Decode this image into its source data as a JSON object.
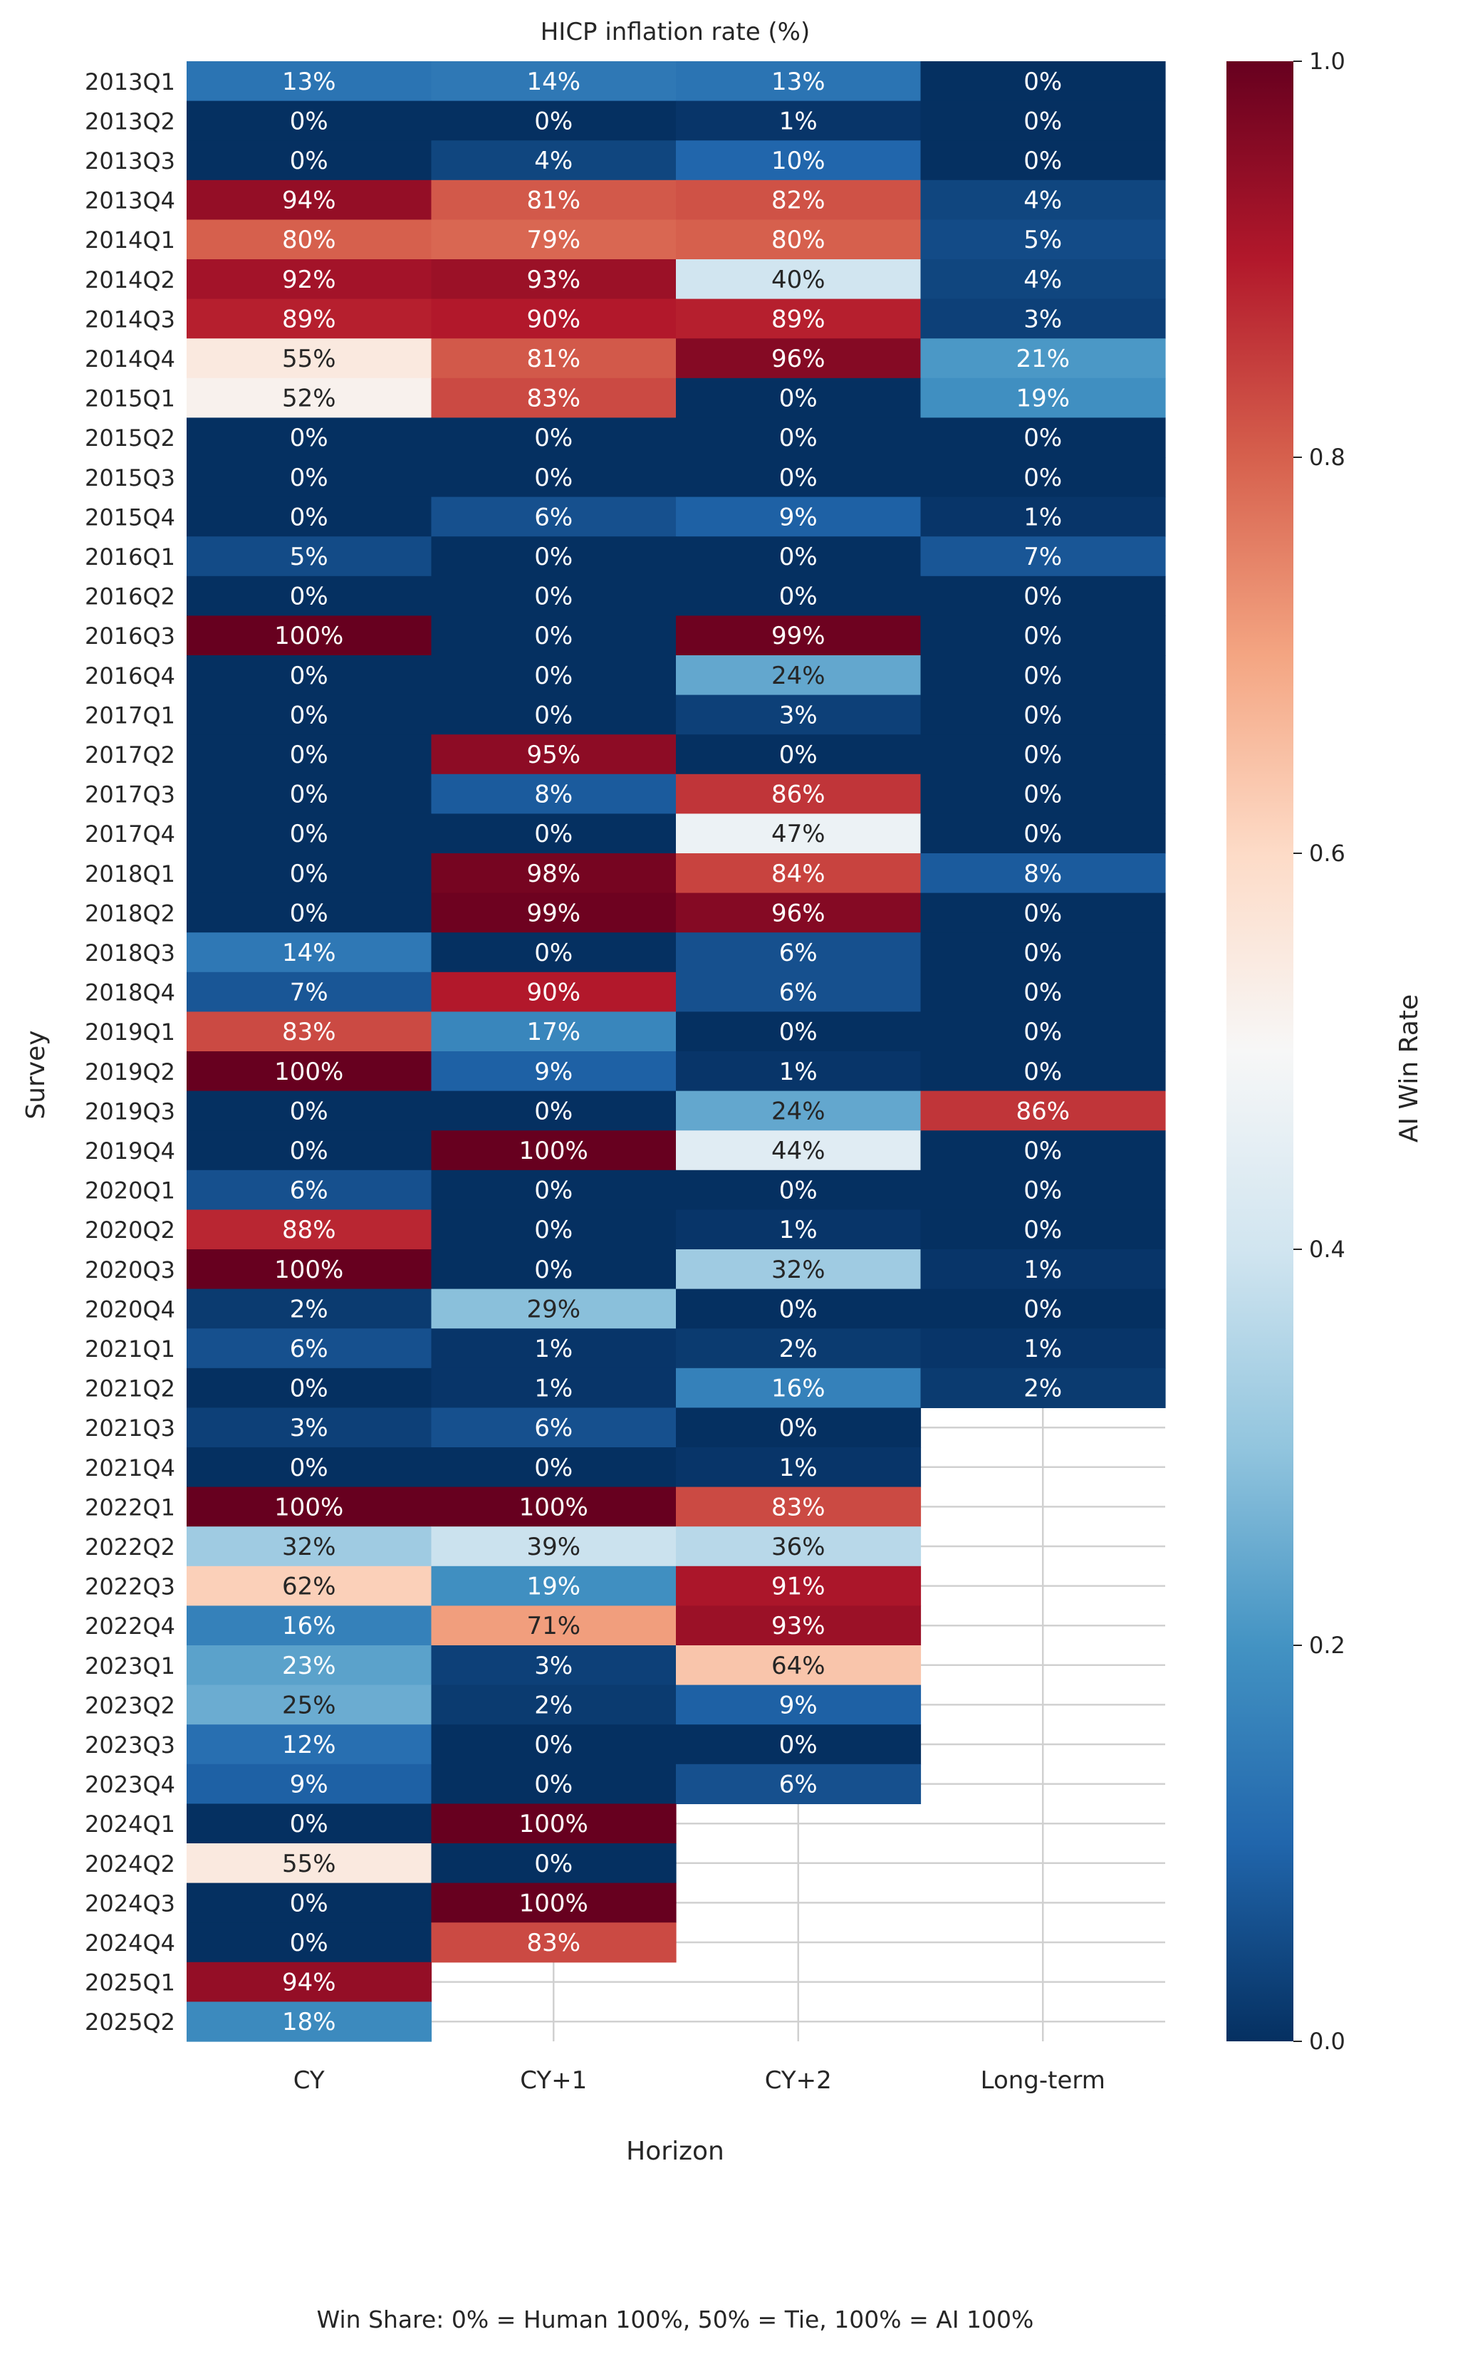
{
  "chart_data": {
    "type": "heatmap",
    "title": "HICP inflation rate (%)",
    "xlabel": "Horizon",
    "ylabel": "Survey",
    "columns": [
      "CY",
      "CY+1",
      "CY+2",
      "Long-term"
    ],
    "rows": [
      "2013Q1",
      "2013Q2",
      "2013Q3",
      "2013Q4",
      "2014Q1",
      "2014Q2",
      "2014Q3",
      "2014Q4",
      "2015Q1",
      "2015Q2",
      "2015Q3",
      "2015Q4",
      "2016Q1",
      "2016Q2",
      "2016Q3",
      "2016Q4",
      "2017Q1",
      "2017Q2",
      "2017Q3",
      "2017Q4",
      "2018Q1",
      "2018Q2",
      "2018Q3",
      "2018Q4",
      "2019Q1",
      "2019Q2",
      "2019Q3",
      "2019Q4",
      "2020Q1",
      "2020Q2",
      "2020Q3",
      "2020Q4",
      "2021Q1",
      "2021Q2",
      "2021Q3",
      "2021Q4",
      "2022Q1",
      "2022Q2",
      "2022Q3",
      "2022Q4",
      "2023Q1",
      "2023Q2",
      "2023Q3",
      "2023Q4",
      "2024Q1",
      "2024Q2",
      "2024Q3",
      "2024Q4",
      "2025Q1",
      "2025Q2"
    ],
    "values": [
      [
        13,
        14,
        13,
        0
      ],
      [
        0,
        0,
        1,
        0
      ],
      [
        0,
        4,
        10,
        0
      ],
      [
        94,
        81,
        82,
        4
      ],
      [
        80,
        79,
        80,
        5
      ],
      [
        92,
        93,
        40,
        4
      ],
      [
        89,
        90,
        89,
        3
      ],
      [
        55,
        81,
        96,
        21
      ],
      [
        52,
        83,
        0,
        19
      ],
      [
        0,
        0,
        0,
        0
      ],
      [
        0,
        0,
        0,
        0
      ],
      [
        0,
        6,
        9,
        1
      ],
      [
        5,
        0,
        0,
        7
      ],
      [
        0,
        0,
        0,
        0
      ],
      [
        100,
        0,
        99,
        0
      ],
      [
        0,
        0,
        24,
        0
      ],
      [
        0,
        0,
        3,
        0
      ],
      [
        0,
        95,
        0,
        0
      ],
      [
        0,
        8,
        86,
        0
      ],
      [
        0,
        0,
        47,
        0
      ],
      [
        0,
        98,
        84,
        8
      ],
      [
        0,
        99,
        96,
        0
      ],
      [
        14,
        0,
        6,
        0
      ],
      [
        7,
        90,
        6,
        0
      ],
      [
        83,
        17,
        0,
        0
      ],
      [
        100,
        9,
        1,
        0
      ],
      [
        0,
        0,
        24,
        86
      ],
      [
        0,
        100,
        44,
        0
      ],
      [
        6,
        0,
        0,
        0
      ],
      [
        88,
        0,
        1,
        0
      ],
      [
        100,
        0,
        32,
        1
      ],
      [
        2,
        29,
        0,
        0
      ],
      [
        6,
        1,
        2,
        1
      ],
      [
        0,
        1,
        16,
        2
      ],
      [
        3,
        6,
        0,
        null
      ],
      [
        0,
        0,
        1,
        null
      ],
      [
        100,
        100,
        83,
        null
      ],
      [
        32,
        39,
        36,
        null
      ],
      [
        62,
        19,
        91,
        null
      ],
      [
        16,
        71,
        93,
        null
      ],
      [
        23,
        3,
        64,
        null
      ],
      [
        25,
        2,
        9,
        null
      ],
      [
        12,
        0,
        0,
        null
      ],
      [
        9,
        0,
        6,
        null
      ],
      [
        0,
        100,
        null,
        null
      ],
      [
        55,
        0,
        null,
        null
      ],
      [
        0,
        100,
        null,
        null
      ],
      [
        0,
        83,
        null,
        null
      ],
      [
        94,
        null,
        null,
        null
      ],
      [
        18,
        null,
        null,
        null
      ]
    ],
    "value_suffix": "%",
    "colormap": "RdBu_r",
    "colormap_stops": [
      "#053061",
      "#2166ac",
      "#4393c3",
      "#92c5de",
      "#d1e5f0",
      "#f7f7f7",
      "#fddbc7",
      "#f4a582",
      "#d6604d",
      "#b2182b",
      "#67001f"
    ],
    "colorbar": {
      "label": "AI Win Rate",
      "range": [
        0.0,
        1.0
      ],
      "ticks": [
        0.0,
        0.2,
        0.4,
        0.6,
        0.8,
        1.0
      ],
      "tick_labels": [
        "0.0",
        "0.2",
        "0.4",
        "0.6",
        "0.8",
        "1.0"
      ]
    },
    "grid": true,
    "footnote": "Win Share: 0% = Human 100%, 50% = Tie, 100% = AI 100%"
  }
}
